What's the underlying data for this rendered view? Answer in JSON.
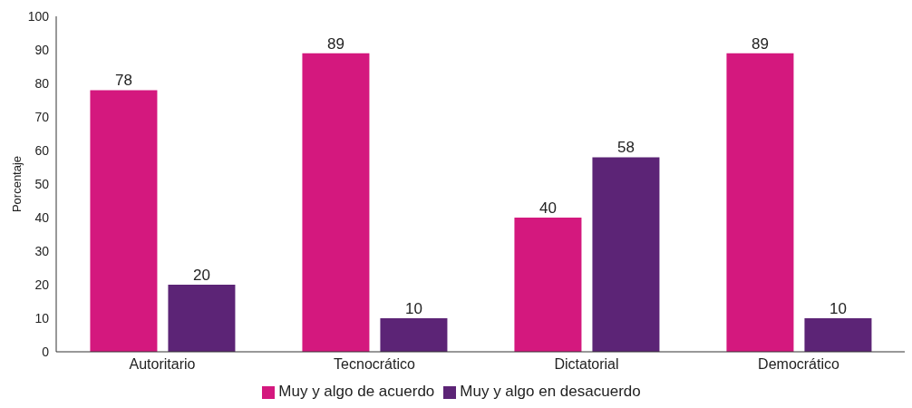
{
  "chart_data": {
    "type": "bar",
    "ylabel": "Porcentaje",
    "categories": [
      "Autoritario",
      "Tecnocrático",
      "Dictatorial",
      "Democrático"
    ],
    "series": [
      {
        "name": "Muy y algo de acuerdo",
        "color": "#d4187e",
        "values": [
          78,
          89,
          40,
          89
        ]
      },
      {
        "name": "Muy y algo en desacuerdo",
        "color": "#5c2476",
        "values": [
          20,
          10,
          58,
          10
        ]
      }
    ],
    "ylim": [
      0,
      100
    ],
    "yticks": [
      0,
      10,
      20,
      30,
      40,
      50,
      60,
      70,
      80,
      90,
      100
    ],
    "grid": false,
    "legend": "bottom",
    "data_labels": true
  }
}
